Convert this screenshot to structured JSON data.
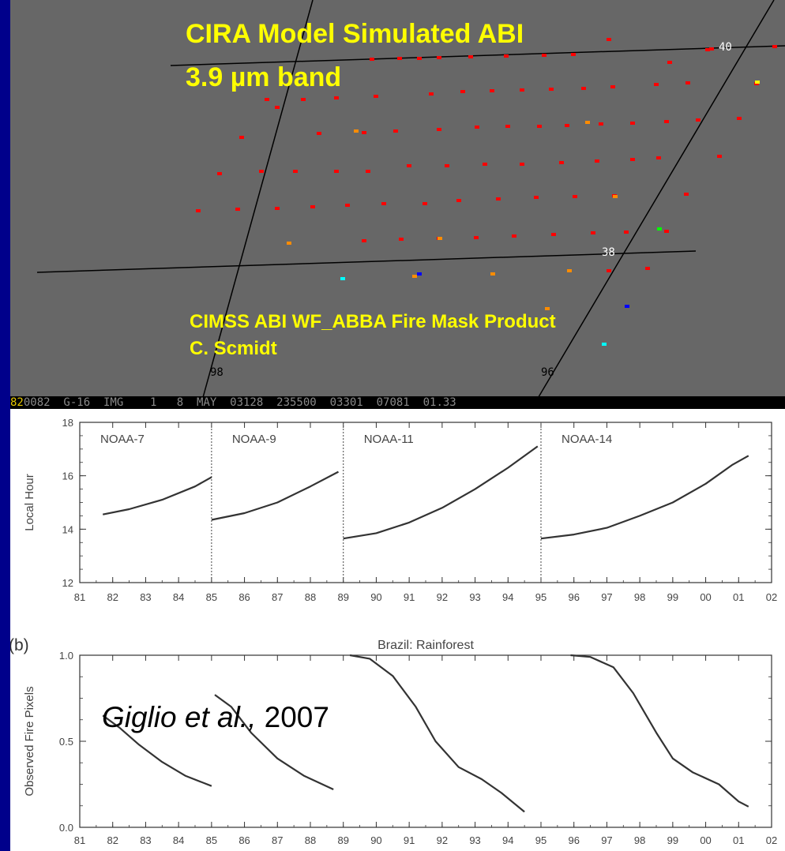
{
  "image_panel": {
    "title_line1": "CIRA Model Simulated ABI",
    "title_line2": "3.9 µm band",
    "caption_line1": "CIMSS ABI WF_ABBA Fire Mask Product",
    "caption_line2": "C. Scmidt",
    "grid_labels": [
      "40",
      "38",
      "98",
      "96"
    ],
    "status_bar": [
      "82",
      "0082  G-16  IMG    1   8  MAY  03128  235500  03301  07081  01.33"
    ],
    "colors": {
      "background": "#676767",
      "title_text": "#ffff00",
      "fire_pixel": "#ff0000",
      "fire_orange": "#ff8c00",
      "fire_yellow": "#ffff00",
      "fire_cyan": "#00ffff",
      "fire_blue": "#0000ff",
      "fire_green": "#00ff00"
    }
  },
  "citation": {
    "authors": "Giglio et al.,",
    "year": " 2007"
  },
  "slide_colors": {
    "border": "#00008b",
    "chart_bg": "#ffffff"
  },
  "chart_data": [
    {
      "type": "line",
      "ylabel": "Local Hour",
      "xlabel": "",
      "xlim": [
        81,
        102
      ],
      "ylim": [
        12,
        18
      ],
      "x_tick_labels": [
        "81",
        "82",
        "83",
        "84",
        "85",
        "86",
        "87",
        "88",
        "89",
        "90",
        "91",
        "92",
        "93",
        "94",
        "95",
        "96",
        "97",
        "98",
        "99",
        "00",
        "01",
        "02"
      ],
      "y_tick_labels": [
        "12",
        "14",
        "16",
        "18"
      ],
      "y_ticks": [
        12,
        14,
        16,
        18
      ],
      "satellite_labels": [
        "NOAA-7",
        "NOAA-9",
        "NOAA-11",
        "NOAA-14"
      ],
      "dividers": [
        85,
        89,
        95
      ],
      "series": [
        {
          "name": "NOAA-7",
          "x": [
            81.7,
            82.5,
            83.5,
            84.5,
            85.0
          ],
          "y": [
            14.55,
            14.75,
            15.1,
            15.6,
            15.95
          ]
        },
        {
          "name": "NOAA-9",
          "x": [
            85.0,
            86.0,
            87.0,
            88.0,
            88.85
          ],
          "y": [
            14.35,
            14.6,
            15.0,
            15.6,
            16.15
          ]
        },
        {
          "name": "NOAA-11",
          "x": [
            89.0,
            90.0,
            91.0,
            92.0,
            93.0,
            94.0,
            94.9
          ],
          "y": [
            13.65,
            13.85,
            14.25,
            14.8,
            15.5,
            16.3,
            17.1
          ]
        },
        {
          "name": "NOAA-14",
          "x": [
            95.0,
            96.0,
            97.0,
            98.0,
            99.0,
            100.0,
            100.8,
            101.3
          ],
          "y": [
            13.65,
            13.8,
            14.05,
            14.5,
            15.0,
            15.7,
            16.4,
            16.75
          ]
        }
      ]
    },
    {
      "type": "line",
      "panel_label": "(b)",
      "title": "Brazil: Rainforest",
      "ylabel": "Observed Fire Pixels",
      "xlabel": "",
      "xlim": [
        81,
        102
      ],
      "ylim": [
        0.0,
        1.0
      ],
      "x_tick_labels": [
        "81",
        "82",
        "83",
        "84",
        "85",
        "86",
        "87",
        "88",
        "89",
        "90",
        "91",
        "92",
        "93",
        "94",
        "95",
        "96",
        "97",
        "98",
        "99",
        "00",
        "01",
        "02"
      ],
      "y_tick_labels": [
        "0.0",
        "0.5",
        "1.0"
      ],
      "y_ticks": [
        0.0,
        0.5,
        1.0
      ],
      "series": [
        {
          "name": "NOAA-7",
          "x": [
            81.7,
            82.2,
            82.8,
            83.5,
            84.2,
            85.0
          ],
          "y": [
            0.65,
            0.58,
            0.48,
            0.38,
            0.3,
            0.24
          ]
        },
        {
          "name": "NOAA-9",
          "x": [
            85.1,
            85.6,
            86.2,
            87.0,
            87.8,
            88.7
          ],
          "y": [
            0.77,
            0.7,
            0.55,
            0.4,
            0.3,
            0.22
          ]
        },
        {
          "name": "NOAA-11",
          "x": [
            89.2,
            89.8,
            90.5,
            91.2,
            91.8,
            92.5,
            93.2,
            93.8,
            94.5
          ],
          "y": [
            1.0,
            0.98,
            0.88,
            0.7,
            0.5,
            0.35,
            0.28,
            0.2,
            0.09
          ]
        },
        {
          "name": "NOAA-14",
          "x": [
            95.9,
            96.5,
            97.2,
            97.8,
            98.5,
            99.0,
            99.6,
            100.4,
            101.0,
            101.3
          ],
          "y": [
            1.0,
            0.99,
            0.93,
            0.78,
            0.55,
            0.4,
            0.32,
            0.25,
            0.15,
            0.12
          ]
        }
      ]
    }
  ]
}
